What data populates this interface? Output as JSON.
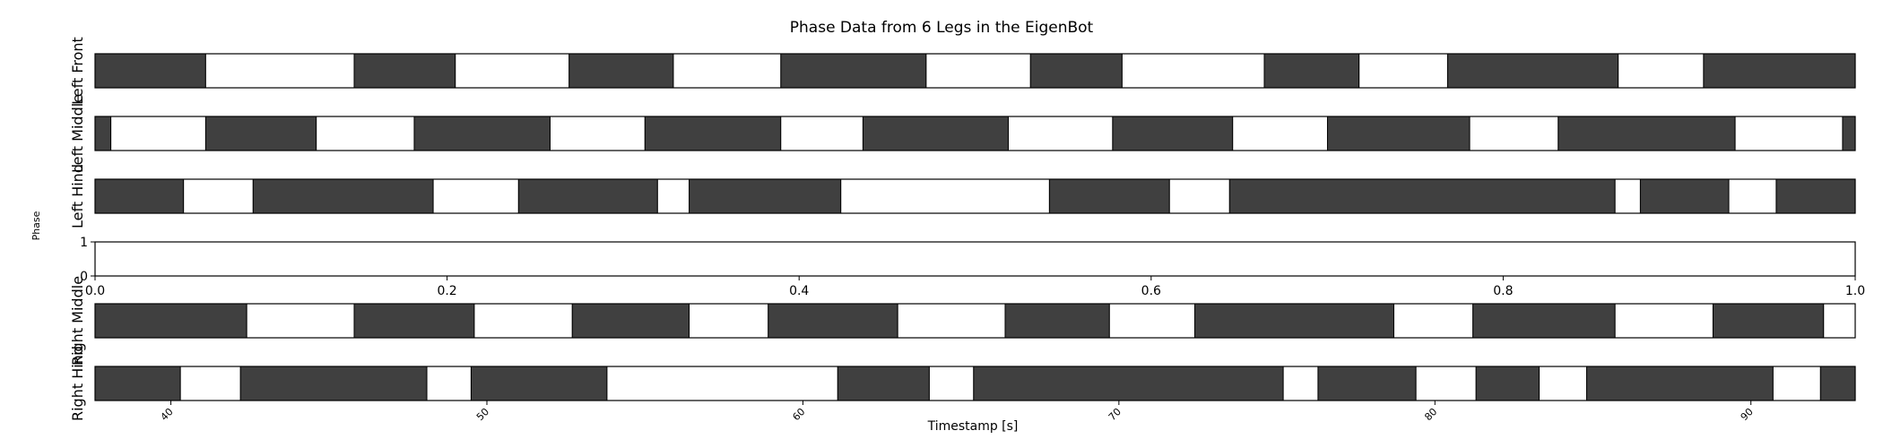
{
  "chart_data": {
    "type": "timeline",
    "title": "Phase Data from 6 Legs in the EigenBot",
    "ylabel": "Phase",
    "xlabel": "Timestamp [s]",
    "colors": {
      "stance": "#404040",
      "swing": "#ffffff",
      "edge": "#000000"
    },
    "time_axis": {
      "xlim": [
        37.6,
        93.3
      ],
      "ticks": [
        40,
        50,
        60,
        70,
        80,
        90
      ],
      "tick_labels": [
        "40",
        "50",
        "60",
        "70",
        "80",
        "90"
      ]
    },
    "empty_axis": {
      "xlim": [
        0.0,
        1.0
      ],
      "ylim": [
        0,
        1
      ],
      "x_ticks": [
        0.0,
        0.2,
        0.4,
        0.6,
        0.8,
        1.0
      ],
      "x_tick_labels": [
        "0.0",
        "0.2",
        "0.4",
        "0.6",
        "0.8",
        "1.0"
      ],
      "y_ticks": [
        0,
        1
      ],
      "y_tick_labels": [
        "0",
        "1"
      ]
    },
    "rows": [
      {
        "label": "Left Front",
        "kind": "leg",
        "stance": [
          [
            37.6,
            41.1
          ],
          [
            45.8,
            49.0
          ],
          [
            52.6,
            55.9
          ],
          [
            59.3,
            63.9
          ],
          [
            67.2,
            70.1
          ],
          [
            74.6,
            77.6
          ],
          [
            80.4,
            85.8
          ],
          [
            88.5,
            93.6
          ]
        ]
      },
      {
        "label": "Left Middle",
        "kind": "leg",
        "stance": [
          [
            37.6,
            38.1
          ],
          [
            41.1,
            44.6
          ],
          [
            47.7,
            52.0
          ],
          [
            55.0,
            59.3
          ],
          [
            61.9,
            66.5
          ],
          [
            69.8,
            73.6
          ],
          [
            76.6,
            81.1
          ],
          [
            83.9,
            89.5
          ],
          [
            92.9,
            93.3
          ]
        ]
      },
      {
        "label": "Left Hind",
        "kind": "leg",
        "stance": [
          [
            37.6,
            40.4
          ],
          [
            42.6,
            48.3
          ],
          [
            51.0,
            55.4
          ],
          [
            56.4,
            61.2
          ],
          [
            67.8,
            71.6
          ],
          [
            73.5,
            85.7
          ],
          [
            86.5,
            89.3
          ],
          [
            90.8,
            93.3
          ]
        ]
      },
      {
        "label": "",
        "kind": "empty"
      },
      {
        "label": "Right Middle",
        "kind": "leg",
        "stance": [
          [
            37.6,
            42.4
          ],
          [
            45.8,
            49.6
          ],
          [
            52.7,
            56.4
          ],
          [
            58.9,
            63.0
          ],
          [
            66.4,
            69.7
          ],
          [
            72.4,
            78.7
          ],
          [
            81.2,
            85.7
          ],
          [
            88.8,
            92.3
          ]
        ]
      },
      {
        "label": "Right Hind",
        "kind": "leg",
        "stance": [
          [
            37.6,
            40.3
          ],
          [
            42.2,
            48.1
          ],
          [
            49.5,
            53.8
          ],
          [
            61.1,
            64.0
          ],
          [
            65.4,
            75.2
          ],
          [
            76.3,
            79.4
          ],
          [
            81.3,
            83.3
          ],
          [
            84.8,
            90.7
          ],
          [
            92.2,
            93.3
          ]
        ]
      }
    ]
  }
}
